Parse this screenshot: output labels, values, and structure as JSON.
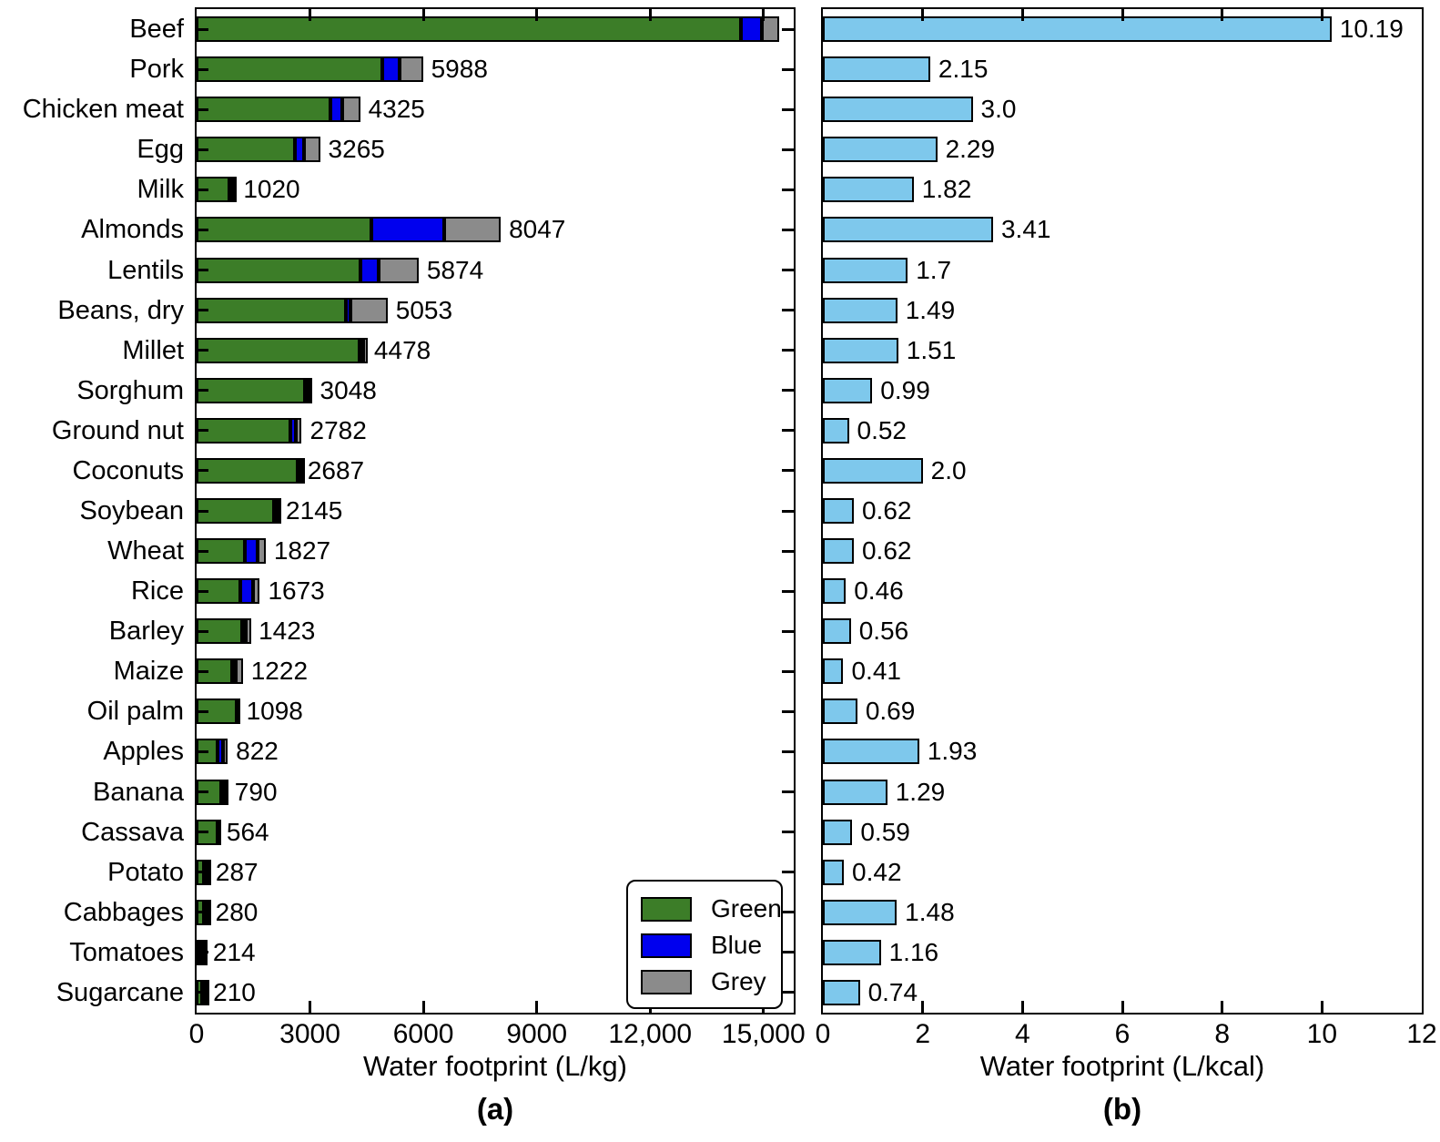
{
  "figure": {
    "background": "#ffffff",
    "categories": [
      "Beef",
      "Pork",
      "Chicken meat",
      "Egg",
      "Milk",
      "Almonds",
      "Lentils",
      "Beans, dry",
      "Millet",
      "Sorghum",
      "Ground nut",
      "Coconuts",
      "Soybean",
      "Wheat",
      "Rice",
      "Barley",
      "Maize",
      "Oil palm",
      "Apples",
      "Banana",
      "Cassava",
      "Potato",
      "Cabbages",
      "Tomatoes",
      "Sugarcane"
    ]
  },
  "chart_data": [
    {
      "id": "a",
      "type": "bar",
      "stacked": true,
      "orientation": "horizontal",
      "xlabel": "Water footprint (L/kg)",
      "sublabel": "(a)",
      "xlim": [
        0,
        15800
      ],
      "grid": false,
      "x_ticks": [
        {
          "value": 0,
          "label": "0"
        },
        {
          "value": 3000,
          "label": "3000"
        },
        {
          "value": 6000,
          "label": "6000"
        },
        {
          "value": 9000,
          "label": "9000"
        },
        {
          "value": 12000,
          "label": "12,000"
        },
        {
          "value": 15000,
          "label": "15,000"
        }
      ],
      "categories": [
        "Beef",
        "Pork",
        "Chicken meat",
        "Egg",
        "Milk",
        "Almonds",
        "Lentils",
        "Beans, dry",
        "Millet",
        "Sorghum",
        "Ground nut",
        "Coconuts",
        "Soybean",
        "Wheat",
        "Rice",
        "Barley",
        "Maize",
        "Oil palm",
        "Apples",
        "Banana",
        "Cassava",
        "Potato",
        "Cabbages",
        "Tomatoes",
        "Sugarcane"
      ],
      "series": [
        {
          "name": "Green",
          "color": "#3C7D28",
          "values": [
            14414,
            4907,
            3545,
            2592,
            862,
            4632,
            4324,
            3945,
            4306,
            2858,
            2469,
            2669,
            2037,
            1278,
            1146,
            1213,
            947,
            1058,
            562,
            660,
            551,
            191,
            181,
            108,
            139
          ]
        },
        {
          "name": "Blue",
          "color": "#0000EE",
          "values": [
            550,
            459,
            313,
            244,
            86,
            1908,
            490,
            125,
            57,
            103,
            150,
            2,
            71,
            342,
            341,
            79,
            81,
            0,
            133,
            97,
            0,
            33,
            26,
            63,
            57
          ]
        },
        {
          "name": "Grey",
          "color": "#8B8B8B",
          "values": [
            451,
            622,
            467,
            429,
            72,
            1507,
            1060,
            983,
            115,
            87,
            163,
            16,
            37,
            207,
            186,
            131,
            194,
            40,
            127,
            33,
            13,
            63,
            73,
            43,
            14
          ]
        }
      ],
      "total_labels": [
        null,
        "5988",
        "4325",
        "3265",
        "1020",
        "8047",
        "5874",
        "5053",
        "4478",
        "3048",
        "2782",
        "2687",
        "2145",
        "1827",
        "1673",
        "1423",
        "1222",
        "1098",
        "822",
        "790",
        "564",
        "287",
        "280",
        "214",
        "210"
      ],
      "legend": {
        "position": "lower right",
        "labels": [
          "Green",
          "Blue",
          "Grey"
        ]
      }
    },
    {
      "id": "b",
      "type": "bar",
      "stacked": false,
      "orientation": "horizontal",
      "xlabel": "Water footprint (L/kcal)",
      "sublabel": "(b)",
      "xlim": [
        0,
        12
      ],
      "grid": false,
      "x_ticks": [
        {
          "value": 0,
          "label": "0"
        },
        {
          "value": 2,
          "label": "2"
        },
        {
          "value": 4,
          "label": "4"
        },
        {
          "value": 6,
          "label": "6"
        },
        {
          "value": 8,
          "label": "8"
        },
        {
          "value": 10,
          "label": "10"
        },
        {
          "value": 12,
          "label": "12"
        }
      ],
      "categories": [
        "Beef",
        "Pork",
        "Chicken meat",
        "Egg",
        "Milk",
        "Almonds",
        "Lentils",
        "Beans, dry",
        "Millet",
        "Sorghum",
        "Ground nut",
        "Coconuts",
        "Soybean",
        "Wheat",
        "Rice",
        "Barley",
        "Maize",
        "Oil palm",
        "Apples",
        "Banana",
        "Cassava",
        "Potato",
        "Cabbages",
        "Tomatoes",
        "Sugarcane"
      ],
      "series": [
        {
          "name": "Water footprint (L/kcal)",
          "color": "#7EC8EC",
          "values": [
            10.19,
            2.15,
            3.0,
            2.29,
            1.82,
            3.41,
            1.7,
            1.49,
            1.51,
            0.99,
            0.52,
            2.0,
            0.62,
            0.62,
            0.46,
            0.56,
            0.41,
            0.69,
            1.93,
            1.29,
            0.59,
            0.42,
            1.48,
            1.16,
            0.74
          ]
        }
      ],
      "value_labels": [
        "10.19",
        "2.15",
        "3.0",
        "2.29",
        "1.82",
        "3.41",
        "1.7",
        "1.49",
        "1.51",
        "0.99",
        "0.52",
        "2.0",
        "0.62",
        "0.62",
        "0.46",
        "0.56",
        "0.41",
        "0.69",
        "1.93",
        "1.29",
        "0.59",
        "0.42",
        "1.48",
        "1.16",
        "0.74"
      ]
    }
  ],
  "colors": {
    "green": "#3C7D28",
    "blue": "#0000EE",
    "grey": "#8B8B8B",
    "light_blue": "#7EC8EC",
    "edge": "#000000",
    "background": "#ffffff"
  }
}
